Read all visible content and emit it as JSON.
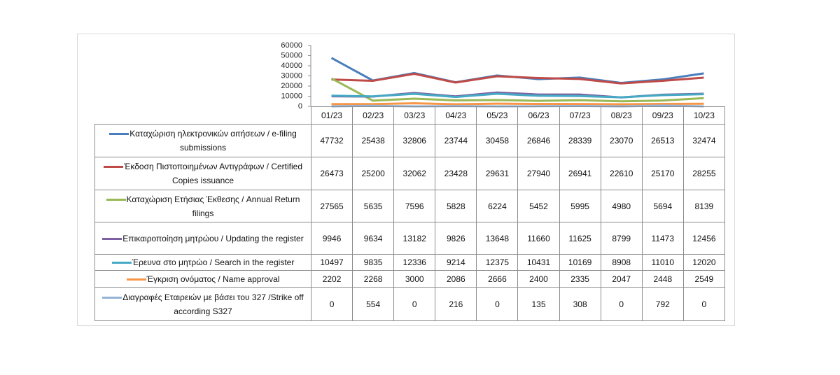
{
  "chart_data": {
    "type": "line",
    "categories": [
      "01/23",
      "02/23",
      "03/23",
      "04/23",
      "05/23",
      "06/23",
      "07/23",
      "08/23",
      "09/23",
      "10/23"
    ],
    "ylim": [
      0,
      60000
    ],
    "yticks": [
      0,
      10000,
      20000,
      30000,
      40000,
      50000,
      60000
    ],
    "series": [
      {
        "name": "Καταχώριση ηλεκτρονικών αιτήσεων / e-filing submissions",
        "color": "#4a7ebb",
        "values": [
          47732,
          25438,
          32806,
          23744,
          30458,
          26846,
          28339,
          23070,
          26513,
          32474
        ]
      },
      {
        "name": "Έκδοση Πιστοποιημένων Αντιγράφων / Certified Copies issuance",
        "color": "#be4b48",
        "values": [
          26473,
          25200,
          32062,
          23428,
          29631,
          27940,
          26941,
          22610,
          25170,
          28255
        ]
      },
      {
        "name": "Καταχώριση Ετήσιας Έκθεσης / Annual Return filings",
        "color": "#98b954",
        "values": [
          27565,
          5635,
          7596,
          5828,
          6224,
          5452,
          5995,
          4980,
          5694,
          8139
        ]
      },
      {
        "name": "Επικαιροποίηση μητρώου / Updating the register",
        "color": "#7d60a0",
        "values": [
          9946,
          9634,
          13182,
          9826,
          13648,
          11660,
          11625,
          8799,
          11473,
          12456
        ]
      },
      {
        "name": "Έρευνα στο μητρώο / Search in the register",
        "color": "#46aac5",
        "values": [
          10497,
          9835,
          12336,
          9214,
          12375,
          10431,
          10169,
          8908,
          11010,
          12020
        ]
      },
      {
        "name": "Έγκριση ονόματος / Name approval",
        "color": "#f79646",
        "values": [
          2202,
          2268,
          3000,
          2086,
          2666,
          2400,
          2335,
          2047,
          2448,
          2549
        ]
      },
      {
        "name": "Διαγραφές Εταιρειών  με βάσει του 327 /Strike off according S327",
        "color": "#95b3d7",
        "values": [
          0,
          554,
          0,
          216,
          0,
          135,
          308,
          0,
          792,
          0
        ]
      }
    ]
  }
}
